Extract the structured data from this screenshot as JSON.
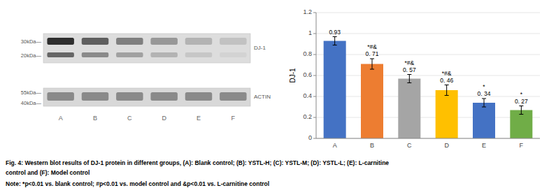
{
  "chart_data": {
    "type": "bar",
    "categories": [
      "A",
      "B",
      "C",
      "D",
      "E",
      "F"
    ],
    "values": [
      0.93,
      0.71,
      0.57,
      0.46,
      0.34,
      0.27
    ],
    "errors": [
      0.04,
      0.05,
      0.04,
      0.05,
      0.04,
      0.04
    ],
    "colors": [
      "#4472C4",
      "#ED7D31",
      "#A5A5A5",
      "#FFC000",
      "#4472C4",
      "#70AD47"
    ],
    "data_labels": true,
    "value_labels": [
      "0.93",
      "*#&\n0. 71",
      "*#&\n0. 57",
      "*#&\n0. 46",
      "*\n0. 34",
      "*\n0. 27"
    ],
    "y_label": "DJ-1",
    "ylim": [
      0,
      1.2
    ],
    "yticks": [
      0,
      0.2,
      0.4,
      0.6,
      0.8,
      1,
      1.2
    ],
    "annotations": {
      "blot_left": [
        "30kDa—",
        "20kDa—",
        "55kDa—",
        "40kDa—"
      ],
      "blot_right": [
        "DJ-1",
        "ACTIN"
      ],
      "caption": [
        "Fig. 4: Western blot results of DJ-1 protein in different groups, (A): Blank control; (B): YSTL-H; (C): YSTL-M; (D): YSTL-L; (E): L-carnitine",
        "control and (F): Model control",
        "Note: *p<0.01 vs. blank control; #p<0.01 vs. model control and &p<0.01 vs. L-carnitine control"
      ]
    }
  }
}
